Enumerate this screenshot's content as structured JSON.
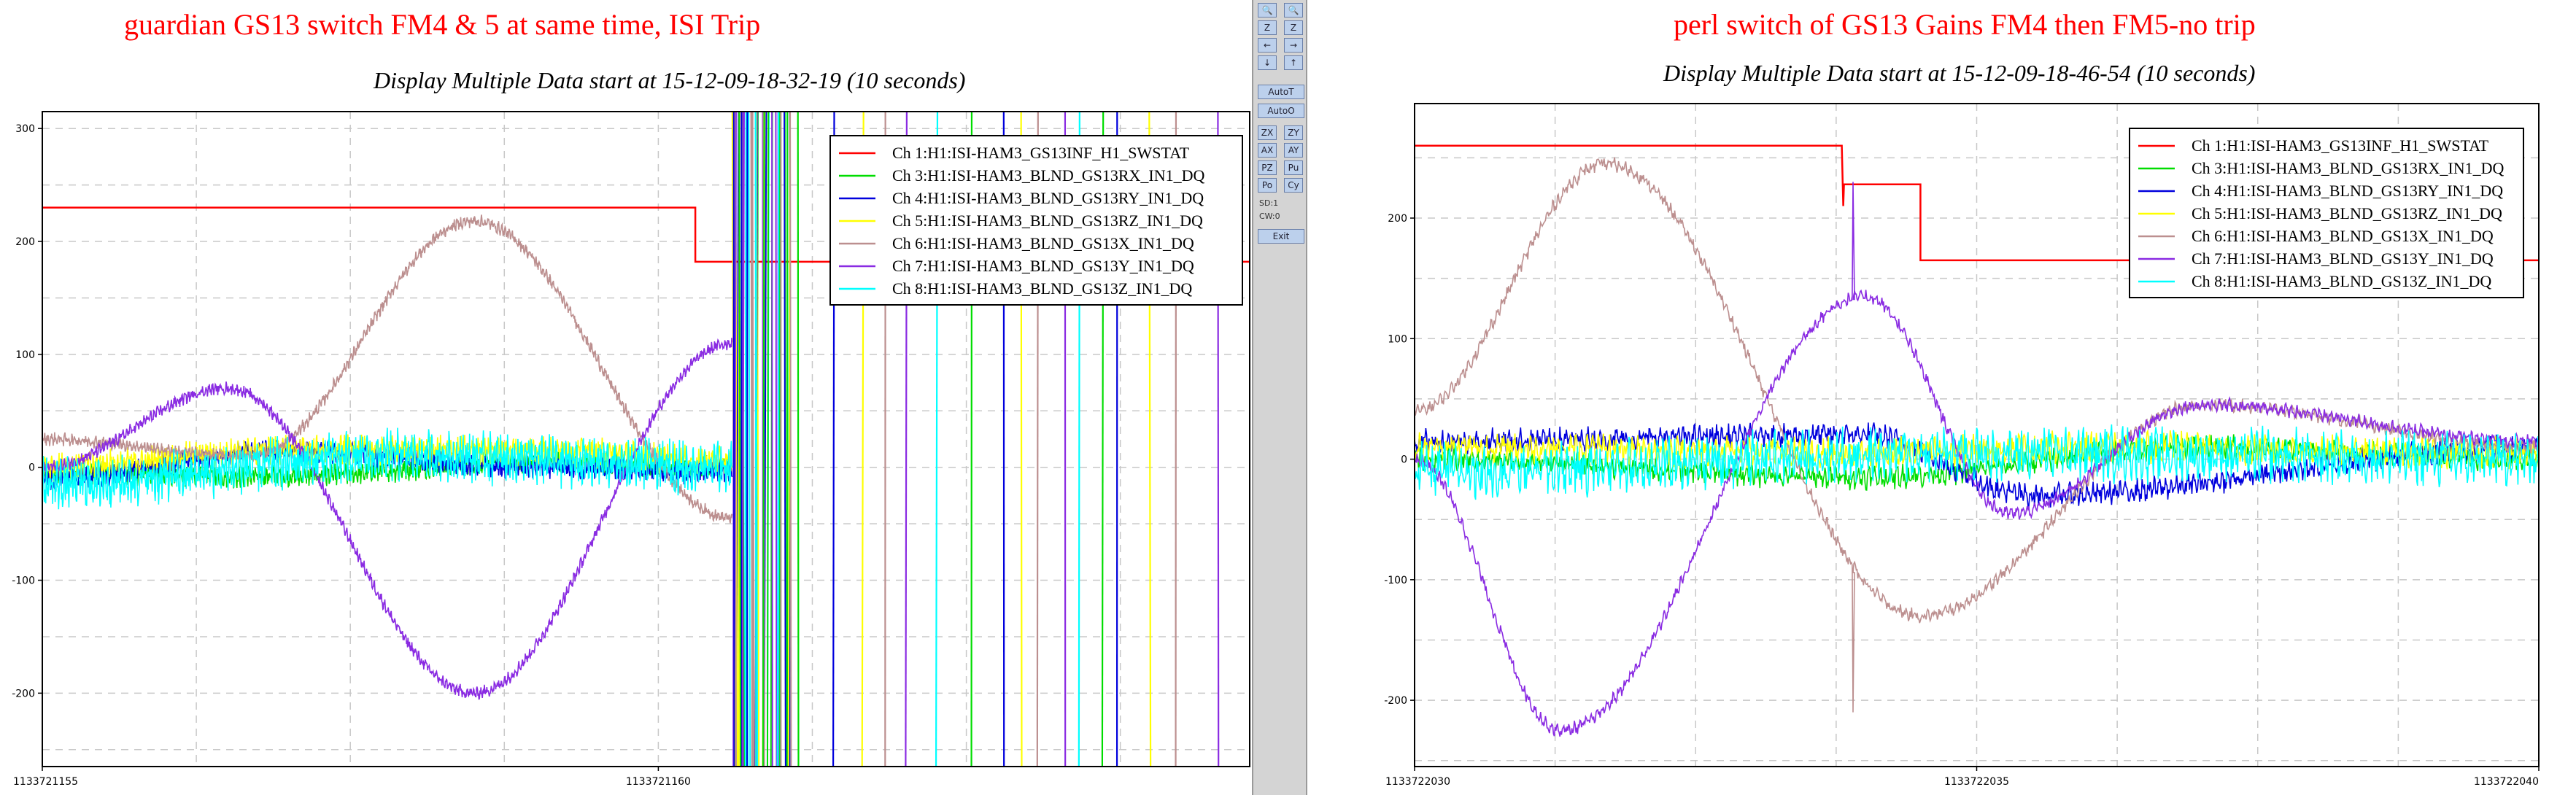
{
  "panels": [
    {
      "title": "guardian GS13 switch FM4 & 5 at same time, ISI Trip",
      "subtitle": "Display Multiple Data start at 15-12-09-18-32-19 (10 seconds)"
    },
    {
      "title": "perl switch of GS13 Gains FM4 then FM5-no trip",
      "subtitle": "Display Multiple Data start at 15-12-09-18-46-54 (10 seconds)"
    }
  ],
  "toolbar": {
    "buttons": [
      "🔍",
      "🔍",
      "Z",
      "Z",
      "←",
      "→",
      "↓",
      "↑",
      "AutoT",
      "AutoO",
      "ZX",
      "ZY",
      "AX",
      "AY",
      "PZ",
      "Pu",
      "Po",
      "Cy",
      "SD:1",
      "CW:0",
      "Exit"
    ]
  },
  "chart_data": [
    {
      "type": "line",
      "title": "guardian GS13 switch FM4 & 5 at same time, ISI Trip",
      "subtitle": "Display Multiple Data start at 15-12-09-18-32-19 (10 seconds)",
      "x_ticks": [
        "1133721155",
        "1133721160"
      ],
      "xlim": [
        1133721155,
        1133721164.8
      ],
      "y_ticks": [
        "300",
        "200",
        "100",
        "0",
        "-100",
        "-200"
      ],
      "ylim": [
        -265,
        315
      ],
      "grid": true,
      "legend_position": "top-right",
      "series": [
        {
          "name": "Ch 1:H1:ISI-HAM3_GS13INF_H1_SWSTAT",
          "color": "#ff0000",
          "description": "step: 230 until ~1133721160.3, then 182",
          "values": [
            [
              1133721155,
              230
            ],
            [
              1133721160.3,
              230
            ],
            [
              1133721160.3,
              182
            ],
            [
              1133721164.8,
              182
            ]
          ]
        },
        {
          "name": "Ch 3:H1:ISI-HAM3_BLND_GS13RX_IN1_DQ",
          "color": "#00dd00",
          "values": [
            [
              1133721155,
              -5
            ],
            [
              1133721157,
              -8
            ],
            [
              1133721159,
              5
            ],
            [
              1133721160.6,
              0
            ]
          ]
        },
        {
          "name": "Ch 4:H1:ISI-HAM3_BLND_GS13RY_IN1_DQ",
          "color": "#0000dd",
          "values": [
            [
              1133721155,
              -10
            ],
            [
              1133721157,
              15
            ],
            [
              1133721159,
              0
            ],
            [
              1133721160.6,
              -5
            ]
          ]
        },
        {
          "name": "Ch 5:H1:ISI-HAM3_BLND_GS13RZ_IN1_DQ",
          "color": "#ffff00",
          "values": [
            [
              1133721155,
              0
            ],
            [
              1133721157,
              15
            ],
            [
              1133721159,
              15
            ],
            [
              1133721160.6,
              5
            ]
          ]
        },
        {
          "name": "Ch 6:H1:ISI-HAM3_BLND_GS13X_IN1_DQ",
          "color": "#bc8f8f",
          "values": [
            [
              1133721155,
              25
            ],
            [
              1133721156.7,
              10
            ],
            [
              1133721158.5,
              218
            ],
            [
              1133721160.6,
              -45
            ]
          ]
        },
        {
          "name": "Ch 7:H1:ISI-HAM3_BLND_GS13Y_IN1_DQ",
          "color": "#8a2be2",
          "values": [
            [
              1133721155,
              0
            ],
            [
              1133721156.5,
              70
            ],
            [
              1133721158.5,
              -200
            ],
            [
              1133721160.6,
              110
            ]
          ]
        },
        {
          "name": "Ch 8:H1:ISI-HAM3_BLND_GS13Z_IN1_DQ",
          "color": "#00ffff",
          "values": [
            [
              1133721155,
              -15
            ],
            [
              1133721158,
              10
            ],
            [
              1133721160.6,
              0
            ]
          ]
        }
      ]
    },
    {
      "type": "line",
      "title": "perl switch of GS13 Gains FM4 then FM5-no trip",
      "subtitle": "Display Multiple Data start at 15-12-09-18-46-54 (10 seconds)",
      "x_ticks": [
        "1133722030",
        "1133722035",
        "1133722040"
      ],
      "xlim": [
        1133722030,
        1133722040
      ],
      "y_ticks": [
        "200",
        "100",
        "0",
        "-100",
        "-200"
      ],
      "ylim": [
        -255,
        295
      ],
      "grid": true,
      "legend_position": "top-right",
      "series": [
        {
          "name": "Ch 1:H1:ISI-HAM3_GS13INF_H1_SWSTAT",
          "color": "#ff0000",
          "description": "step: 260 until ~1133722033.8, 228 until ~1133722034.5, then 165",
          "values": [
            [
              1133722030,
              260
            ],
            [
              1133722033.8,
              260
            ],
            [
              1133722033.8,
              228
            ],
            [
              1133722034.5,
              228
            ],
            [
              1133722034.5,
              165
            ],
            [
              1133722040,
              165
            ]
          ]
        },
        {
          "name": "Ch 3:H1:ISI-HAM3_BLND_GS13RX_IN1_DQ",
          "color": "#00dd00",
          "values": [
            [
              1133722030,
              0
            ],
            [
              1133722034,
              -15
            ],
            [
              1133722037,
              10
            ],
            [
              1133722040,
              0
            ]
          ]
        },
        {
          "name": "Ch 4:H1:ISI-HAM3_BLND_GS13RY_IN1_DQ",
          "color": "#0000dd",
          "values": [
            [
              1133722030,
              15
            ],
            [
              1133722034,
              20
            ],
            [
              1133722035.5,
              -30
            ],
            [
              1133722040,
              10
            ]
          ]
        },
        {
          "name": "Ch 5:H1:ISI-HAM3_BLND_GS13RZ_IN1_DQ",
          "color": "#ffff00",
          "values": [
            [
              1133722030,
              10
            ],
            [
              1133722034,
              5
            ],
            [
              1133722036,
              10
            ],
            [
              1133722040,
              5
            ]
          ]
        },
        {
          "name": "Ch 6:H1:ISI-HAM3_BLND_GS13X_IN1_DQ",
          "color": "#bc8f8f",
          "values": [
            [
              1133722030,
              40
            ],
            [
              1133722031.7,
              245
            ],
            [
              1133722034.5,
              -130
            ],
            [
              1133722037,
              45
            ],
            [
              1133722040,
              10
            ]
          ]
        },
        {
          "name": "Ch 7:H1:ISI-HAM3_BLND_GS13Y_IN1_DQ",
          "color": "#8a2be2",
          "values": [
            [
              1133722030,
              0
            ],
            [
              1133722031.3,
              -225
            ],
            [
              1133722034,
              135
            ],
            [
              1133722035.3,
              -45
            ],
            [
              1133722037,
              45
            ],
            [
              1133722040,
              15
            ]
          ]
        },
        {
          "name": "Ch 8:H1:ISI-HAM3_BLND_GS13Z_IN1_DQ",
          "color": "#00ffff",
          "values": [
            [
              1133722030,
              -10
            ],
            [
              1133722035,
              5
            ],
            [
              1133722040,
              0
            ]
          ]
        }
      ]
    }
  ]
}
